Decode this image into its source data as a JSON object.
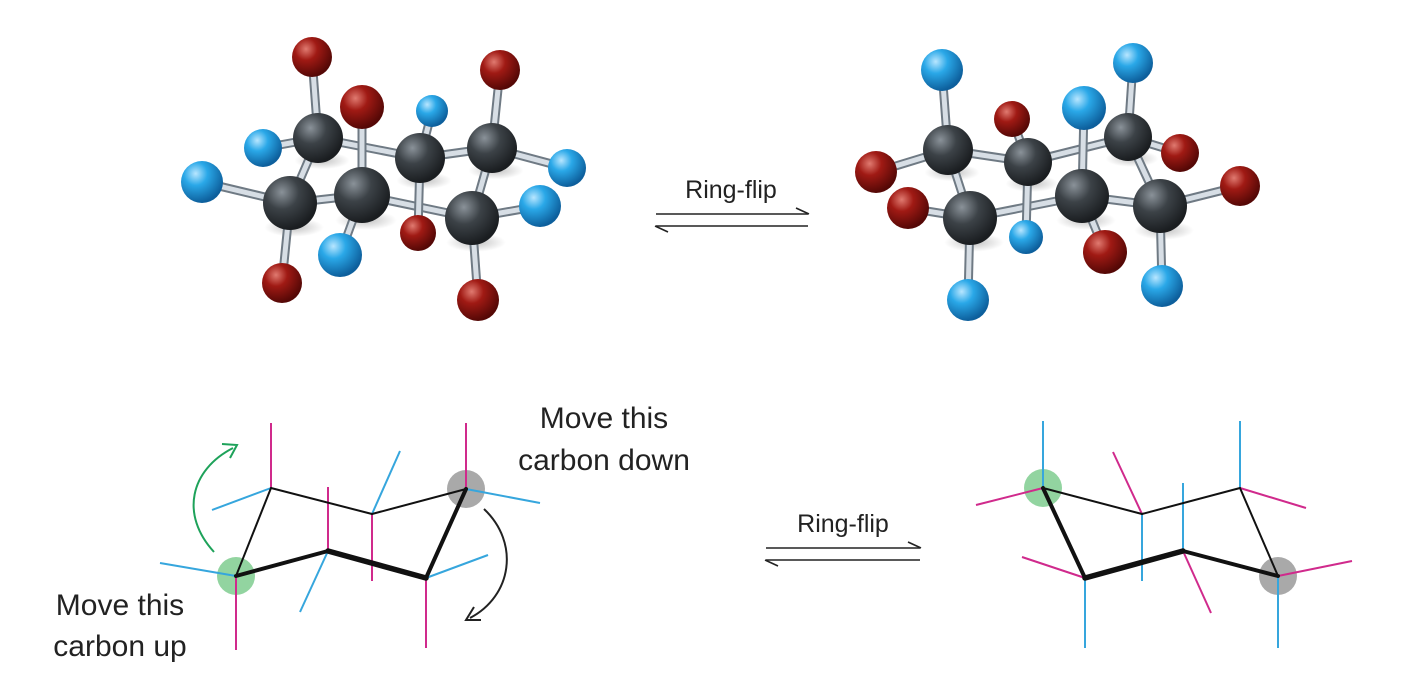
{
  "labels": {
    "ring_flip_top": "Ring-flip",
    "ring_flip_bottom": "Ring-flip",
    "move_down_line1": "Move this",
    "move_down_line2": "carbon down",
    "move_up_line1": "Move this",
    "move_up_line2": "carbon up"
  },
  "colors": {
    "carbon": "#3c4247",
    "hydrogen_blue": "#2aa8e8",
    "hydrogen_red": "#a01a14",
    "bond": "#b9c3cc",
    "axial_magenta": "#d02a8c",
    "equatorial_blue": "#36a6dd",
    "ring_line": "#111111",
    "highlight_green": "#7fcc8f",
    "highlight_gray": "#9a9a9a",
    "curved_arrow_green": "#1ea25a",
    "curved_arrow_black": "#222222"
  },
  "icons": {
    "equilibrium_arrow_top": "equilibrium-arrows-icon",
    "equilibrium_arrow_bottom": "equilibrium-arrows-icon",
    "curved_arrow_up": "curved-arrow-up-icon",
    "curved_arrow_down": "curved-arrow-down-icon"
  }
}
